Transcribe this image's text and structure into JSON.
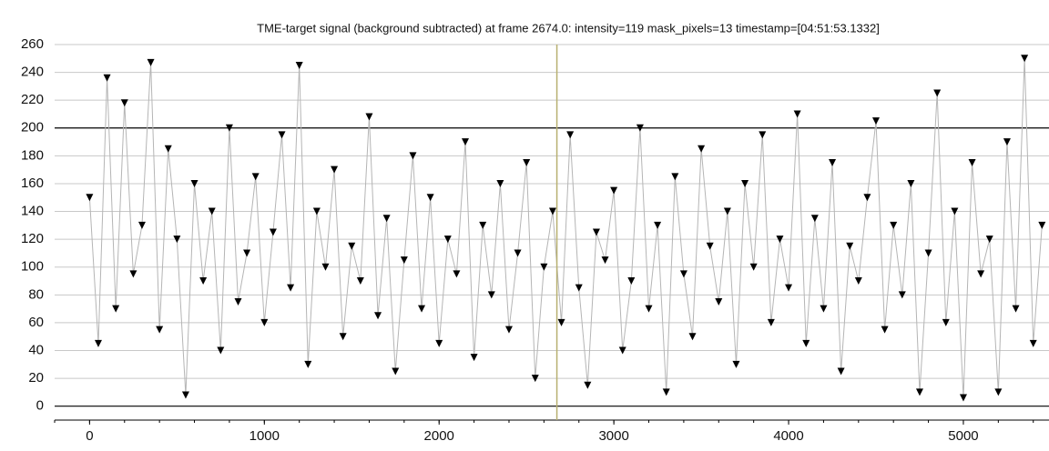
{
  "chart_data": {
    "type": "line",
    "title": "TME-target signal (background subtracted) at frame 2674.0: intensity=119 mask_pixels=13 timestamp=[04:51:53.1332]",
    "marker_x": 2674,
    "x": [
      0,
      50,
      100,
      150,
      200,
      250,
      300,
      350,
      400,
      450,
      500,
      550,
      600,
      650,
      700,
      750,
      800,
      850,
      900,
      950,
      1000,
      1050,
      1100,
      1150,
      1200,
      1250,
      1300,
      1350,
      1400,
      1450,
      1500,
      1550,
      1600,
      1650,
      1700,
      1750,
      1800,
      1850,
      1900,
      1950,
      2000,
      2050,
      2100,
      2150,
      2200,
      2250,
      2300,
      2350,
      2400,
      2450,
      2500,
      2550,
      2600,
      2650,
      2700,
      2750,
      2800,
      2850,
      2900,
      2950,
      3000,
      3050,
      3100,
      3150,
      3200,
      3250,
      3300,
      3350,
      3400,
      3450,
      3500,
      3550,
      3600,
      3650,
      3700,
      3750,
      3800,
      3850,
      3900,
      3950,
      4000,
      4050,
      4100,
      4150,
      4200,
      4250,
      4300,
      4350,
      4400,
      4450,
      4500,
      4550,
      4600,
      4650,
      4700,
      4750,
      4800,
      4850,
      4900,
      4950,
      5000,
      5050,
      5100,
      5150,
      5200,
      5250,
      5300,
      5350,
      5400,
      5450
    ],
    "series": [
      {
        "color": "#000000",
        "line_color": "#b5b5b5",
        "values": [
          150,
          45,
          236,
          70,
          218,
          95,
          130,
          247,
          55,
          185,
          120,
          8,
          160,
          90,
          140,
          40,
          200,
          75,
          110,
          165,
          60,
          125,
          195,
          85,
          245,
          30,
          140,
          100,
          170,
          50,
          115,
          90,
          208,
          65,
          135,
          25,
          105,
          180,
          70,
          150,
          45,
          120,
          95,
          190,
          35,
          130,
          80,
          160,
          55,
          110,
          175,
          20,
          100,
          140,
          60,
          195,
          85,
          15,
          125,
          105,
          155,
          40,
          90,
          200,
          70,
          130,
          10,
          165,
          95,
          50,
          185,
          115,
          75,
          140,
          30,
          160,
          100,
          195,
          60,
          120,
          85,
          210,
          45,
          135,
          70,
          175,
          25,
          115,
          90,
          150,
          205,
          55,
          130,
          80,
          160,
          10,
          110,
          225,
          60,
          140,
          6,
          175,
          95,
          120,
          10,
          190,
          70,
          250,
          45,
          130
        ]
      }
    ],
    "xlim": [
      -200,
      5490
    ],
    "ylim": [
      -10,
      260
    ],
    "xticks": [
      0,
      1000,
      2000,
      3000,
      4000,
      5000
    ],
    "yticks": [
      0,
      20,
      40,
      60,
      80,
      100,
      120,
      140,
      160,
      180,
      200,
      220,
      240,
      260
    ],
    "bold_yticks": [
      0,
      200
    ],
    "grid": true
  }
}
